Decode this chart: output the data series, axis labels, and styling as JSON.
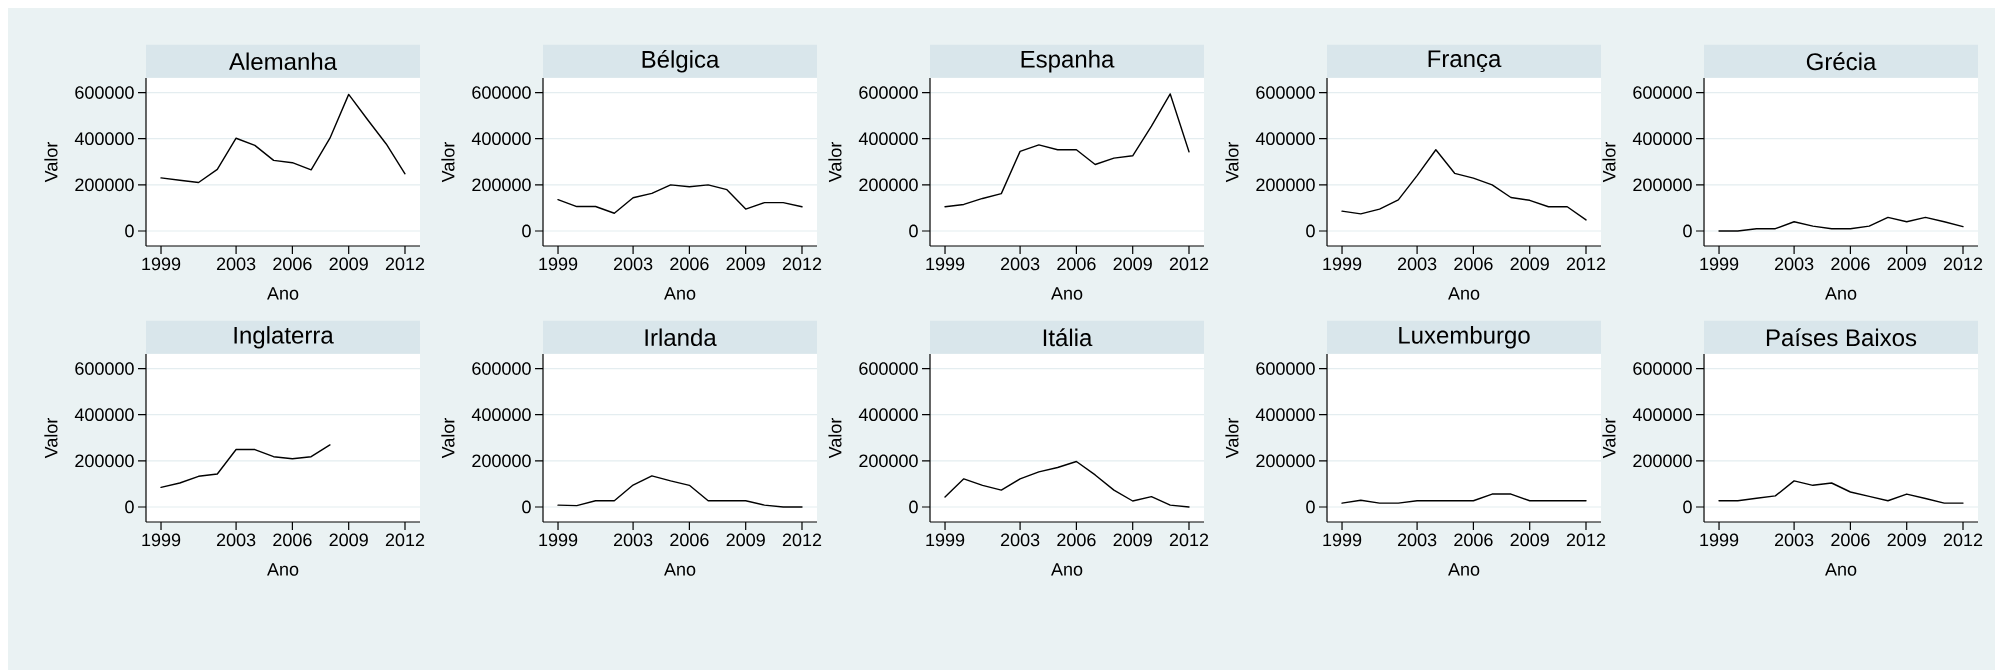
{
  "chart_data": [
    {
      "type": "line",
      "title": "Alemanha",
      "xlabel": "Ano",
      "ylabel": "Valor",
      "color": "#000000",
      "grid": "y",
      "xlim": [
        1998.2,
        2012.8
      ],
      "ylim": [
        -65000,
        663000
      ],
      "xticks": [
        1999,
        2003,
        2006,
        2009,
        2012
      ],
      "yticks": [
        0,
        200000,
        400000,
        600000
      ],
      "x": [
        1999,
        2000,
        2001,
        2002,
        2003,
        2004,
        2005,
        2006,
        2007,
        2008,
        2009,
        2010,
        2011,
        2012
      ],
      "values": [
        230000,
        220000,
        210000,
        267000,
        402000,
        371000,
        306000,
        296000,
        265000,
        402000,
        592000,
        483000,
        377000,
        248000
      ]
    },
    {
      "type": "line",
      "title": "Bélgica",
      "xlabel": "Ano",
      "ylabel": "Valor",
      "color": "#000000",
      "grid": "y",
      "xlim": [
        1998.2,
        2012.8
      ],
      "ylim": [
        -65000,
        663000
      ],
      "xticks": [
        1999,
        2003,
        2006,
        2009,
        2012
      ],
      "yticks": [
        0,
        200000,
        400000,
        600000
      ],
      "x": [
        1999,
        2000,
        2001,
        2002,
        2003,
        2004,
        2005,
        2006,
        2007,
        2008,
        2009,
        2010,
        2011,
        2012
      ],
      "values": [
        136000,
        106000,
        106000,
        77000,
        144000,
        163000,
        200000,
        192000,
        200000,
        179000,
        95000,
        123000,
        123000,
        105000
      ]
    },
    {
      "type": "line",
      "title": "Espanha",
      "xlabel": "Ano",
      "ylabel": "Valor",
      "color": "#000000",
      "grid": "y",
      "xlim": [
        1998.2,
        2012.8
      ],
      "ylim": [
        -65000,
        663000
      ],
      "xticks": [
        1999,
        2003,
        2006,
        2009,
        2012
      ],
      "yticks": [
        0,
        200000,
        400000,
        600000
      ],
      "x": [
        1999,
        2000,
        2001,
        2002,
        2003,
        2004,
        2005,
        2006,
        2007,
        2008,
        2009,
        2010,
        2011,
        2012
      ],
      "values": [
        105000,
        115000,
        141000,
        162000,
        345000,
        373000,
        352000,
        352000,
        288000,
        316000,
        326000,
        454000,
        594000,
        343000
      ]
    },
    {
      "type": "line",
      "title": "França",
      "xlabel": "Ano",
      "ylabel": "Valor",
      "color": "#000000",
      "grid": "y",
      "xlim": [
        1998.2,
        2012.8
      ],
      "ylim": [
        -65000,
        663000
      ],
      "xticks": [
        1999,
        2003,
        2006,
        2009,
        2012
      ],
      "yticks": [
        0,
        200000,
        400000,
        600000
      ],
      "x": [
        1999,
        2000,
        2001,
        2002,
        2003,
        2004,
        2005,
        2006,
        2007,
        2008,
        2009,
        2010,
        2011,
        2012
      ],
      "values": [
        86000,
        74000,
        95000,
        135000,
        240000,
        352000,
        250000,
        229000,
        200000,
        145000,
        133000,
        105000,
        105000,
        48000
      ]
    },
    {
      "type": "line",
      "title": "Grécia",
      "xlabel": "Ano",
      "ylabel": "Valor",
      "color": "#000000",
      "grid": "y",
      "xlim": [
        1998.2,
        2012.8
      ],
      "ylim": [
        -65000,
        663000
      ],
      "xticks": [
        1999,
        2003,
        2006,
        2009,
        2012
      ],
      "yticks": [
        0,
        200000,
        400000,
        600000
      ],
      "x": [
        1999,
        2000,
        2001,
        2002,
        2003,
        2004,
        2005,
        2006,
        2007,
        2008,
        2009,
        2010,
        2011,
        2012
      ],
      "values": [
        0,
        0,
        10000,
        10000,
        40000,
        21000,
        10000,
        10000,
        21000,
        59000,
        40000,
        59000,
        40000,
        19000
      ]
    },
    {
      "type": "line",
      "title": "Inglaterra",
      "xlabel": "Ano",
      "ylabel": "Valor",
      "color": "#000000",
      "grid": "y",
      "xlim": [
        1998.2,
        2012.8
      ],
      "ylim": [
        -65000,
        663000
      ],
      "xticks": [
        1999,
        2003,
        2006,
        2009,
        2012
      ],
      "yticks": [
        0,
        200000,
        400000,
        600000
      ],
      "x": [
        1999,
        2000,
        2001,
        2002,
        2003,
        2004,
        2005,
        2006,
        2007,
        2008
      ],
      "values": [
        85000,
        104000,
        133000,
        143000,
        249000,
        249000,
        218000,
        209000,
        218000,
        269000
      ]
    },
    {
      "type": "line",
      "title": "Irlanda",
      "xlabel": "Ano",
      "ylabel": "Valor",
      "color": "#000000",
      "grid": "y",
      "xlim": [
        1998.2,
        2012.8
      ],
      "ylim": [
        -65000,
        663000
      ],
      "xticks": [
        1999,
        2003,
        2006,
        2009,
        2012
      ],
      "yticks": [
        0,
        200000,
        400000,
        600000
      ],
      "x": [
        1999,
        2000,
        2001,
        2002,
        2003,
        2004,
        2005,
        2006,
        2007,
        2008,
        2009,
        2010,
        2011,
        2012
      ],
      "values": [
        8000,
        6000,
        27000,
        27000,
        95000,
        135000,
        113000,
        94000,
        27000,
        27000,
        27000,
        8000,
        0,
        0
      ]
    },
    {
      "type": "line",
      "title": "Itália",
      "xlabel": "Ano",
      "ylabel": "Valor",
      "color": "#000000",
      "grid": "y",
      "xlim": [
        1998.2,
        2012.8
      ],
      "ylim": [
        -65000,
        663000
      ],
      "xticks": [
        1999,
        2003,
        2006,
        2009,
        2012
      ],
      "yticks": [
        0,
        200000,
        400000,
        600000
      ],
      "x": [
        1999,
        2000,
        2001,
        2002,
        2003,
        2004,
        2005,
        2006,
        2007,
        2008,
        2009,
        2010,
        2011,
        2012
      ],
      "values": [
        43000,
        122000,
        94000,
        73000,
        122000,
        152000,
        171000,
        197000,
        139000,
        73000,
        26000,
        45000,
        8000,
        0
      ]
    },
    {
      "type": "line",
      "title": "Luxemburgo",
      "xlabel": "Ano",
      "ylabel": "Valor",
      "color": "#000000",
      "grid": "y",
      "xlim": [
        1998.2,
        2012.8
      ],
      "ylim": [
        -65000,
        663000
      ],
      "xticks": [
        1999,
        2003,
        2006,
        2009,
        2012
      ],
      "yticks": [
        0,
        200000,
        400000,
        600000
      ],
      "x": [
        1999,
        2000,
        2001,
        2002,
        2003,
        2004,
        2005,
        2006,
        2007,
        2008,
        2009,
        2010,
        2011,
        2012
      ],
      "values": [
        17000,
        29000,
        17000,
        17000,
        27000,
        27000,
        27000,
        27000,
        56000,
        56000,
        27000,
        27000,
        27000,
        27000
      ]
    },
    {
      "type": "line",
      "title": "Países Baixos",
      "xlabel": "Ano",
      "ylabel": "Valor",
      "color": "#000000",
      "grid": "y",
      "xlim": [
        1998.2,
        2012.8
      ],
      "ylim": [
        -65000,
        663000
      ],
      "xticks": [
        1999,
        2003,
        2006,
        2009,
        2012
      ],
      "yticks": [
        0,
        200000,
        400000,
        600000
      ],
      "x": [
        1999,
        2000,
        2001,
        2002,
        2003,
        2004,
        2005,
        2006,
        2007,
        2008,
        2009,
        2010,
        2011,
        2012
      ],
      "values": [
        27000,
        27000,
        38000,
        48000,
        113000,
        94000,
        104000,
        65000,
        46000,
        27000,
        56000,
        37000,
        17000,
        17000
      ]
    }
  ]
}
